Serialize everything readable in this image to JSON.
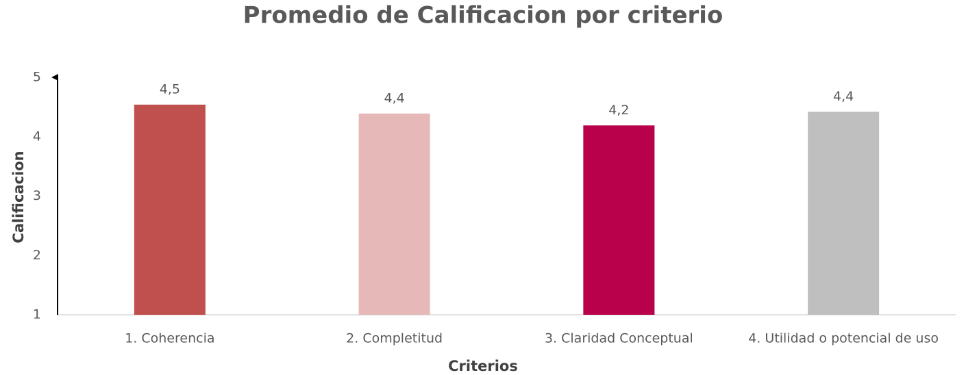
{
  "chart_data": {
    "type": "bar",
    "title": "Promedio de Calificacion por criterio",
    "x_label": "Criterios",
    "y_label": "Calificacion",
    "categories": [
      "1. Coherencia",
      "2. Completitud",
      "3. Claridad Conceptual",
      "4. Utilidad o potencial de uso"
    ],
    "values": [
      4.54,
      4.39,
      4.19,
      4.42
    ],
    "value_labels": [
      "4,5",
      "4,4",
      "4,2",
      "4,4"
    ],
    "colors": [
      "#c0504d",
      "#e6b9b8",
      "#b9004b",
      "#bfbfbf"
    ],
    "ylim": [
      1,
      5
    ],
    "yticks": [
      1,
      2,
      3,
      4,
      5
    ],
    "grid": false
  }
}
